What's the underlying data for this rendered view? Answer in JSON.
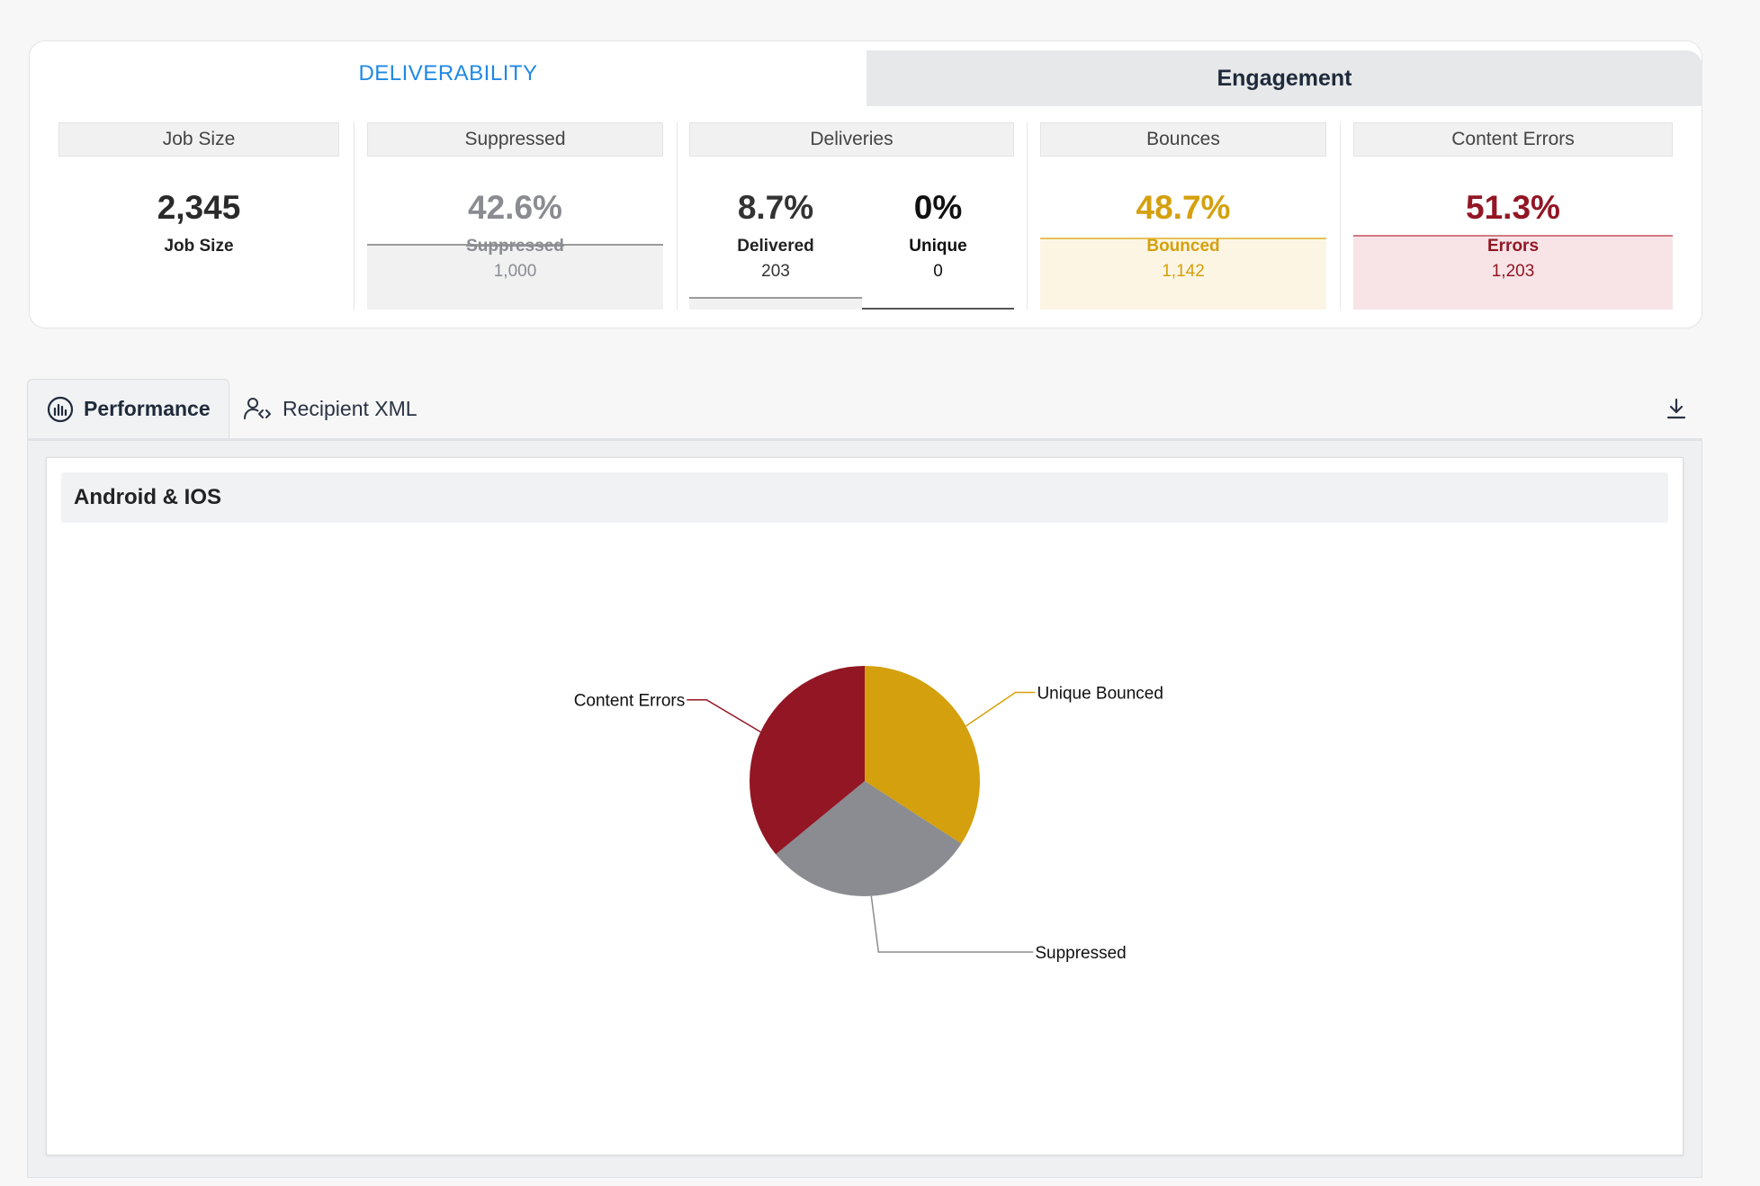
{
  "top_tabs": {
    "deliverability": "DELIVERABILITY",
    "engagement": "Engagement"
  },
  "metrics": {
    "job_size": {
      "header": "Job Size",
      "value": "2,345",
      "label": "Job Size"
    },
    "suppressed": {
      "header": "Suppressed",
      "percent": "42.6%",
      "label": "Suppressed",
      "count": "1,000"
    },
    "deliveries": {
      "header": "Deliveries",
      "delivered": {
        "percent": "8.7%",
        "label": "Delivered",
        "count": "203"
      },
      "unique": {
        "percent": "0%",
        "label": "Unique",
        "count": "0"
      }
    },
    "bounces": {
      "header": "Bounces",
      "percent": "48.7%",
      "label": "Bounced",
      "count": "1,142"
    },
    "content_errors": {
      "header": "Content Errors",
      "percent": "51.3%",
      "label": "Errors",
      "count": "1,203"
    }
  },
  "colors": {
    "accent_blue": "#1e88e5",
    "bounced": "#d4a00d",
    "errors": "#921624",
    "suppressed": "#8a8c91"
  },
  "lower_tabs": {
    "performance": {
      "label": "Performance",
      "icon": "chart-gauge-icon"
    },
    "recipient_xml": {
      "label": "Recipient XML",
      "icon": "user-code-icon"
    },
    "download_icon": "download-icon"
  },
  "chart_title": "Android & IOS",
  "chart_data": {
    "type": "pie",
    "title": "Android & IOS",
    "slices": [
      {
        "label": "Unique Bounced",
        "value": 1142,
        "color": "#d4a00d"
      },
      {
        "label": "Suppressed",
        "value": 1000,
        "color": "#8a8c91"
      },
      {
        "label": "Content Errors",
        "value": 1203,
        "color": "#921624"
      }
    ]
  }
}
